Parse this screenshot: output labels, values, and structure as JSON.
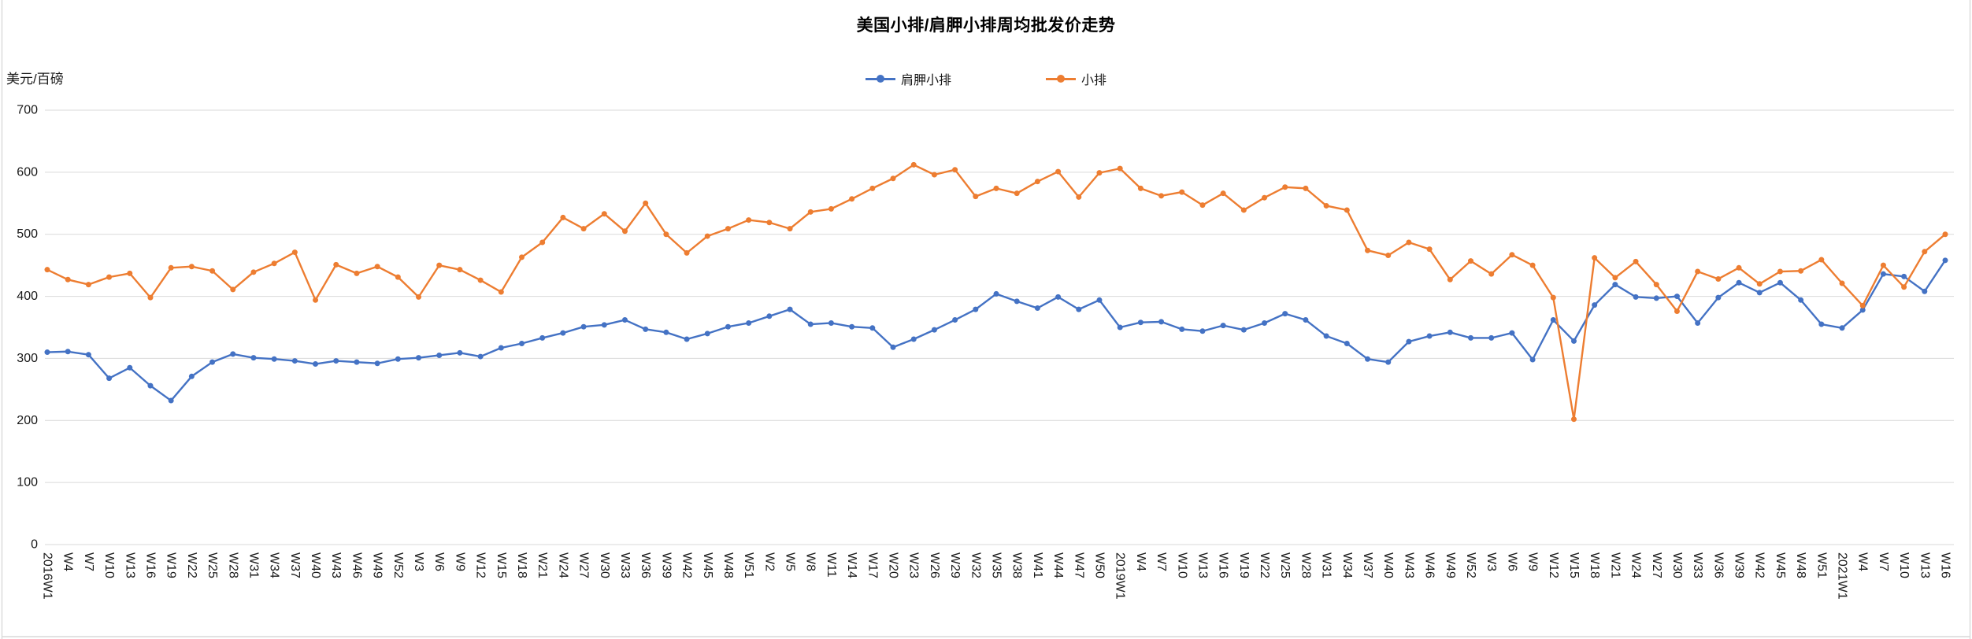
{
  "title": "美国小排/肩胛小排周均批发价走势",
  "y_axis_title": "美元/百磅",
  "colors": {
    "shoulder_rib": "#4472C4",
    "rib": "#ED7D31",
    "gridline": "#D9D9D9",
    "tick_text": "#1a1a1a"
  },
  "legend": [
    {
      "label": "肩胛小排",
      "color": "#4472C4"
    },
    {
      "label": "小排",
      "color": "#ED7D31"
    }
  ],
  "chart_data": {
    "type": "line",
    "title": "美国小排/肩胛小排周均批发价走势",
    "xlabel": "",
    "ylabel": "美元/百磅",
    "ylim": [
      0,
      700
    ],
    "ytick_interval": 100,
    "grid": true,
    "legend_position": "top",
    "markers": true,
    "categories": [
      "2016W1",
      "W4",
      "W7",
      "W10",
      "W13",
      "W16",
      "W19",
      "W22",
      "W25",
      "W28",
      "W31",
      "W34",
      "W37",
      "W40",
      "W43",
      "W46",
      "W49",
      "W52",
      "W3",
      "W6",
      "W9",
      "W12",
      "W15",
      "W18",
      "W21",
      "W24",
      "W27",
      "W30",
      "W33",
      "W36",
      "W39",
      "W42",
      "W45",
      "W48",
      "W51",
      "W2",
      "W5",
      "W8",
      "W11",
      "W14",
      "W17",
      "W20",
      "W23",
      "W26",
      "W29",
      "W32",
      "W35",
      "W38",
      "W41",
      "W44",
      "W47",
      "W50",
      "2019W1",
      "W4",
      "W7",
      "W10",
      "W13",
      "W16",
      "W19",
      "W22",
      "W25",
      "W28",
      "W31",
      "W34",
      "W37",
      "W40",
      "W43",
      "W46",
      "W49",
      "W52",
      "W3",
      "W6",
      "W9",
      "W12",
      "W15",
      "W18",
      "W21",
      "W24",
      "W27",
      "W30",
      "W33",
      "W36",
      "W39",
      "W42",
      "W45",
      "W48",
      "W51",
      "2021W1",
      "W4",
      "W7",
      "W10",
      "W13",
      "W16"
    ],
    "series": [
      {
        "name": "肩胛小排",
        "color": "#4472C4",
        "values": [
          310,
          311,
          306,
          268,
          285,
          256,
          232,
          271,
          294,
          307,
          301,
          299,
          296,
          291,
          296,
          294,
          292,
          299,
          301,
          305,
          309,
          303,
          317,
          324,
          333,
          341,
          351,
          354,
          362,
          347,
          342,
          331,
          340,
          351,
          357,
          368,
          379,
          355,
          357,
          351,
          349,
          318,
          331,
          346,
          362,
          379,
          404,
          392,
          381,
          399,
          379,
          394,
          350,
          358,
          359,
          347,
          344,
          353,
          346,
          357,
          372,
          362,
          336,
          324,
          299,
          294,
          327,
          336,
          342,
          333,
          333,
          341,
          298,
          362,
          328,
          386,
          419,
          399,
          397,
          400,
          357,
          398,
          422,
          406,
          422,
          394,
          355,
          349,
          378,
          436,
          432,
          408,
          458
        ]
      },
      {
        "name": "小排",
        "color": "#ED7D31",
        "values": [
          443,
          427,
          419,
          431,
          437,
          398,
          446,
          448,
          441,
          411,
          439,
          453,
          471,
          394,
          451,
          437,
          448,
          431,
          399,
          450,
          443,
          426,
          407,
          463,
          487,
          527,
          509,
          533,
          505,
          550,
          500,
          470,
          497,
          509,
          523,
          519,
          509,
          536,
          541,
          557,
          574,
          590,
          612,
          596,
          604,
          561,
          574,
          566,
          585,
          601,
          560,
          599,
          606,
          574,
          562,
          568,
          547,
          566,
          539,
          559,
          576,
          574,
          546,
          539,
          474,
          466,
          487,
          476,
          427,
          457,
          436,
          467,
          450,
          398,
          202,
          462,
          430,
          456,
          419,
          376,
          440,
          428,
          446,
          420,
          440,
          441,
          459,
          421,
          385,
          450,
          415,
          472,
          500
        ]
      }
    ]
  }
}
